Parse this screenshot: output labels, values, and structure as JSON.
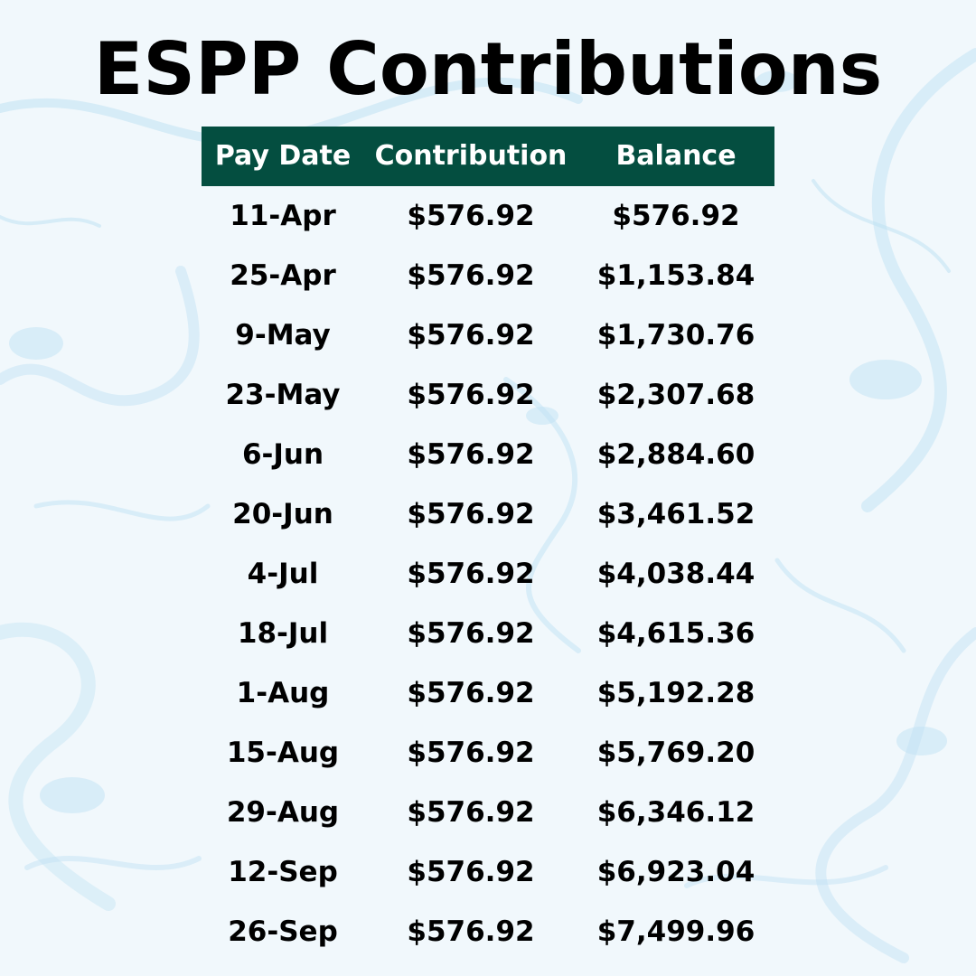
{
  "title": "ESPP Contributions",
  "colors": {
    "header_bg": "#044e40",
    "header_text": "#ffffff",
    "text": "#000000",
    "background": "#f1f8fc"
  },
  "table": {
    "headers": [
      "Pay Date",
      "Contribution",
      "Balance"
    ],
    "rows": [
      [
        "11-Apr",
        "$576.92",
        "$576.92"
      ],
      [
        "25-Apr",
        "$576.92",
        "$1,153.84"
      ],
      [
        "9-May",
        "$576.92",
        "$1,730.76"
      ],
      [
        "23-May",
        "$576.92",
        "$2,307.68"
      ],
      [
        "6-Jun",
        "$576.92",
        "$2,884.60"
      ],
      [
        "20-Jun",
        "$576.92",
        "$3,461.52"
      ],
      [
        "4-Jul",
        "$576.92",
        "$4,038.44"
      ],
      [
        "18-Jul",
        "$576.92",
        "$4,615.36"
      ],
      [
        "1-Aug",
        "$576.92",
        "$5,192.28"
      ],
      [
        "15-Aug",
        "$576.92",
        "$5,769.20"
      ],
      [
        "29-Aug",
        "$576.92",
        "$6,346.12"
      ],
      [
        "12-Sep",
        "$576.92",
        "$6,923.04"
      ],
      [
        "26-Sep",
        "$576.92",
        "$7,499.96"
      ]
    ]
  }
}
